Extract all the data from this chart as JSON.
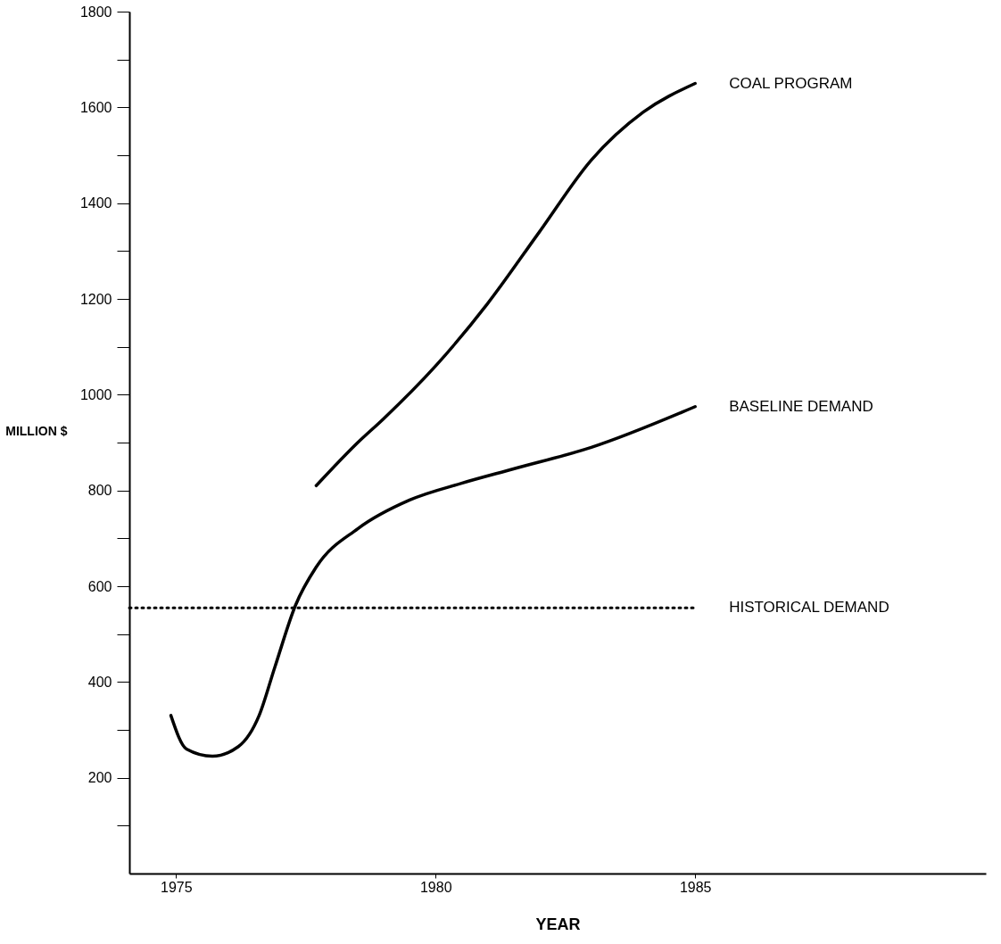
{
  "chart_data": {
    "type": "line",
    "xlabel": "YEAR",
    "ylabel": "MILLION $",
    "xlim": [
      1974.1,
      1990.6
    ],
    "xticks": [
      1975,
      1980,
      1985
    ],
    "ylim": [
      0,
      1800
    ],
    "yticks": [
      {
        "value": 100,
        "label": null
      },
      200,
      {
        "value": 300,
        "label": null
      },
      400,
      {
        "value": 500,
        "label": null
      },
      600,
      {
        "value": 700,
        "label": null
      },
      800,
      {
        "value": 900,
        "label": null
      },
      1000,
      {
        "value": 1100,
        "label": null
      },
      1200,
      {
        "value": 1300,
        "label": null
      },
      1400,
      {
        "value": 1500,
        "label": null
      },
      1600,
      {
        "value": 1700,
        "label": null
      },
      1800
    ],
    "grid": false,
    "marker": "none",
    "series": [
      {
        "name": "COAL PROGRAM",
        "color": "#000000",
        "line_style": "solid",
        "x": [
          1977.7,
          1978.5,
          1979,
          1980,
          1981,
          1982,
          1983,
          1984,
          1985
        ],
        "values": [
          810,
          900,
          950,
          1060,
          1190,
          1340,
          1490,
          1590,
          1650
        ]
      },
      {
        "name": "BASELINE DEMAND",
        "color": "#000000",
        "line_style": "solid",
        "x": [
          1974.9,
          1975.2,
          1975.7,
          1976.2,
          1976.6,
          1976.9,
          1977.3,
          1977.7,
          1978.5,
          1979.5,
          1980.5,
          1981.5,
          1983,
          1985
        ],
        "values": [
          330,
          260,
          245,
          265,
          330,
          430,
          560,
          640,
          720,
          780,
          815,
          845,
          890,
          975
        ]
      },
      {
        "name": "HISTORICAL DEMAND",
        "color": "#000000",
        "line_style": "dotted",
        "x": [
          1974.1,
          1985
        ],
        "values": [
          555,
          555
        ]
      }
    ]
  }
}
